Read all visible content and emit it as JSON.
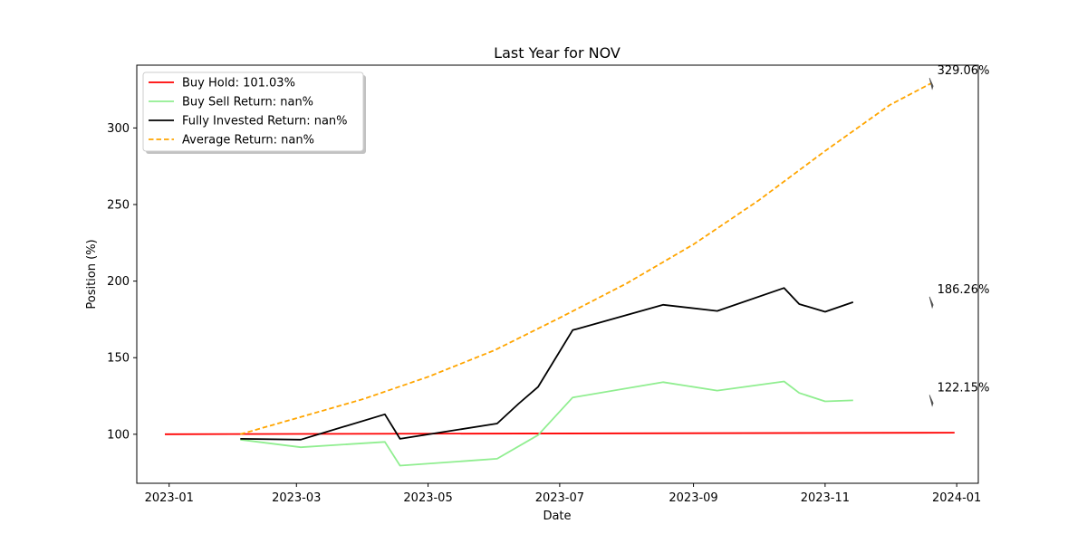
{
  "chart_data": {
    "type": "line",
    "title": "Last Year for NOV",
    "xlabel": "Date",
    "ylabel": "Position (%)",
    "xlim": [
      "2022-12-17",
      "2024-01-11"
    ],
    "ylim": [
      68,
      341
    ],
    "x_ticks": [
      "2023-01-01",
      "2023-03-01",
      "2023-05-01",
      "2023-07-01",
      "2023-09-01",
      "2023-11-01",
      "2024-01-01"
    ],
    "x_tick_labels": [
      "2023-01",
      "2023-03",
      "2023-05",
      "2023-07",
      "2023-09",
      "2023-11",
      "2024-01"
    ],
    "y_ticks": [
      100,
      150,
      200,
      250,
      300
    ],
    "legend_position": "top-left",
    "grid": false,
    "series": [
      {
        "name": "Buy Hold: 101.03%",
        "color": "#ff0000",
        "style": "solid",
        "points": [
          [
            "2022-12-30",
            100.0
          ],
          [
            "2023-12-31",
            101.03
          ]
        ]
      },
      {
        "name": "Buy Sell Return: nan%",
        "color": "#90ee90",
        "style": "solid",
        "points": [
          [
            "2023-02-03",
            96.5
          ],
          [
            "2023-03-03",
            91.5
          ],
          [
            "2023-04-11",
            95.0
          ],
          [
            "2023-04-18",
            79.5
          ],
          [
            "2023-06-02",
            84.0
          ],
          [
            "2023-06-21",
            99.5
          ],
          [
            "2023-07-07",
            124.0
          ],
          [
            "2023-08-18",
            134.0
          ],
          [
            "2023-09-12",
            128.5
          ],
          [
            "2023-10-13",
            134.5
          ],
          [
            "2023-10-20",
            127.0
          ],
          [
            "2023-11-01",
            121.5
          ],
          [
            "2023-11-14",
            122.15
          ]
        ]
      },
      {
        "name": "Fully Invested Return: nan%",
        "color": "#000000",
        "style": "solid",
        "points": [
          [
            "2023-02-03",
            97.0
          ],
          [
            "2023-03-03",
            96.5
          ],
          [
            "2023-04-11",
            113.0
          ],
          [
            "2023-04-18",
            97.0
          ],
          [
            "2023-06-02",
            107.0
          ],
          [
            "2023-06-12",
            120.0
          ],
          [
            "2023-06-21",
            131.0
          ],
          [
            "2023-07-07",
            168.0
          ],
          [
            "2023-08-18",
            184.5
          ],
          [
            "2023-09-12",
            180.5
          ],
          [
            "2023-10-13",
            195.5
          ],
          [
            "2023-10-20",
            185.0
          ],
          [
            "2023-11-01",
            180.0
          ],
          [
            "2023-11-14",
            186.26
          ]
        ]
      },
      {
        "name": "Average Return: nan%",
        "color": "#ffa500",
        "style": "dashed",
        "points": [
          [
            "2023-02-03",
            100.0
          ],
          [
            "2023-03-01",
            110.5
          ],
          [
            "2023-04-01",
            123.0
          ],
          [
            "2023-05-01",
            137.5
          ],
          [
            "2023-06-01",
            155.0
          ],
          [
            "2023-07-01",
            176.0
          ],
          [
            "2023-08-01",
            198.5
          ],
          [
            "2023-09-01",
            224.0
          ],
          [
            "2023-10-01",
            252.5
          ],
          [
            "2023-11-01",
            285.0
          ],
          [
            "2023-12-01",
            315.0
          ],
          [
            "2023-12-20",
            329.06
          ]
        ]
      }
    ],
    "annotations": [
      {
        "text": "329.06%",
        "x": "2023-12-20",
        "y": 329.06
      },
      {
        "text": "186.26%",
        "x": "2023-12-20",
        "y": 186.26
      },
      {
        "text": "122.15%",
        "x": "2023-12-20",
        "y": 122.15
      }
    ]
  }
}
